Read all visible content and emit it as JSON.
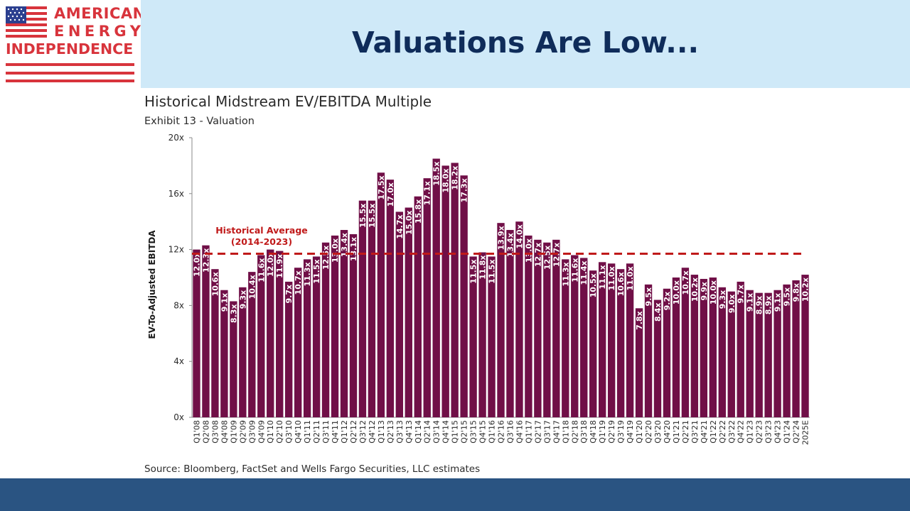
{
  "logo": {
    "line1": "AMERICAN",
    "line2": "ENERGY",
    "line3": "INDEPENDENCE"
  },
  "slide_title": "Valuations Are Low...",
  "colors": {
    "bar": "#700f47",
    "average_line": "#c01a1a",
    "header_band": "#cfe9f8",
    "footer_band": "#2a5482",
    "title": "#0f2c5a",
    "logo_red": "#d8343c"
  },
  "chart_data": {
    "type": "bar",
    "title": "Historical Midstream EV/EBITDA Multiple",
    "subtitle": "Exhibit 13 - Valuation",
    "ylabel": "EV-To-Adjusted EBITDA",
    "xlabel": "",
    "ylim": [
      0,
      20
    ],
    "yticks": [
      "0x",
      "4x",
      "8x",
      "12x",
      "16x",
      "20x"
    ],
    "categories": [
      "Q1'08",
      "Q2'08",
      "Q3'08",
      "Q4'08",
      "Q1'09",
      "Q2'09",
      "Q3'09",
      "Q4'09",
      "Q1'10",
      "Q2'10",
      "Q3'10",
      "Q4'10",
      "Q1'11",
      "Q2'11",
      "Q3'11",
      "Q4'11",
      "Q1'12",
      "Q2'12",
      "Q3'12",
      "Q4'12",
      "Q1'13",
      "Q2'13",
      "Q3'13",
      "Q4'13",
      "Q1'14",
      "Q2'14",
      "Q3'14",
      "Q4'14",
      "Q1'15",
      "Q2'15",
      "Q3'15",
      "Q4'15",
      "Q1'16",
      "Q2'16",
      "Q3'16",
      "Q4'16",
      "Q1'17",
      "Q2'17",
      "Q3'17",
      "Q4'17",
      "Q1'18",
      "Q2'18",
      "Q3'18",
      "Q4'18",
      "Q1'19",
      "Q2'19",
      "Q3'19",
      "Q4'19",
      "Q1'20",
      "Q2'20",
      "Q3'20",
      "Q4'20",
      "Q1'21",
      "Q2'21",
      "Q3'21",
      "Q4'21",
      "Q1'22",
      "Q2'22",
      "Q3'22",
      "Q4'22",
      "Q1'23",
      "Q2'23",
      "Q3'23",
      "Q4'23",
      "Q1'24",
      "Q2'24",
      "2025E"
    ],
    "values": [
      12.0,
      12.3,
      10.6,
      9.1,
      8.3,
      9.3,
      10.4,
      11.6,
      12.0,
      11.9,
      9.7,
      10.7,
      11.3,
      11.5,
      12.5,
      13.0,
      13.4,
      13.1,
      15.5,
      15.5,
      17.5,
      17.0,
      14.7,
      15.0,
      15.8,
      17.1,
      18.5,
      18.0,
      18.2,
      17.3,
      11.5,
      11.8,
      11.5,
      13.9,
      13.4,
      14.0,
      13.0,
      12.7,
      12.5,
      12.7,
      11.3,
      11.6,
      11.4,
      10.5,
      11.1,
      11.0,
      10.6,
      11.0,
      7.8,
      9.5,
      8.4,
      9.2,
      10.0,
      10.7,
      10.2,
      9.9,
      10.0,
      9.3,
      9.0,
      9.7,
      9.1,
      8.9,
      8.9,
      9.1,
      9.5,
      9.8,
      10.2
    ],
    "data_labels": [
      "12.0x",
      "12.3x",
      "10.6x",
      "9.1x",
      "8.3x",
      "9.3x",
      "10.4x",
      "11.6x",
      "12.0x",
      "11.9x",
      "9.7x",
      "10.7x",
      "11.3x",
      "11.5x",
      "12.5x",
      "13.0x",
      "13.4x",
      "13.1x",
      "15.5x",
      "15.5x",
      "17.5x",
      "17.0x",
      "14.7x",
      "15.0x",
      "15.8x",
      "17.1x",
      "18.5x",
      "18.0x",
      "18.2x",
      "17.3x",
      "11.5x",
      "11.8x",
      "11.5x",
      "13.9x",
      "13.4x",
      "14.0x",
      "13.0x",
      "12.7x",
      "12.5x",
      "12.7x",
      "11.3x",
      "11.6x",
      "11.4x",
      "10.5x",
      "11.1x",
      "11.0x",
      "10.6x",
      "11.0x",
      "7.8x",
      "9.5x",
      "8.4x",
      "9.2x",
      "10.0x",
      "10.7x",
      "10.2x",
      "9.9x",
      "10.0x",
      "9.3x",
      "9.0x",
      "9.7x",
      "9.1x",
      "8.9x",
      "8.9x",
      "9.1x",
      "9.5x",
      "9.8x",
      "10.2x"
    ],
    "reference_line": {
      "value": 11.7,
      "label_line1": "Historical Average",
      "label_line2": "(2014-2023)",
      "style": "dashed"
    },
    "grid": false,
    "legend": "none"
  },
  "source": "Source: Bloomberg, FactSet and Wells Fargo Securities, LLC estimates"
}
